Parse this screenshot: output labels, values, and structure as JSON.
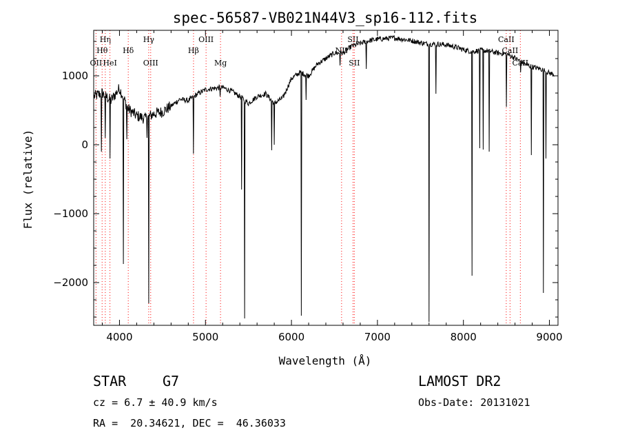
{
  "chart_data": {
    "type": "line",
    "title": "spec-56587-VB021N44V3_sp16-112.fits",
    "xlabel": "Wavelength (Å)",
    "ylabel": "Flux (relative)",
    "xlim": [
      3700,
      9100
    ],
    "ylim": [
      -2620,
      1660
    ],
    "x_ticks": [
      4000,
      5000,
      6000,
      7000,
      8000,
      9000
    ],
    "y_ticks": [
      1000,
      0,
      -1000,
      -2000
    ],
    "grid": false,
    "line_color": "#000000",
    "marker_color": "#ff0000",
    "continuum": [
      [
        3700,
        700
      ],
      [
        3800,
        750
      ],
      [
        3900,
        640
      ],
      [
        4000,
        820
      ],
      [
        4100,
        520
      ],
      [
        4200,
        420
      ],
      [
        4300,
        380
      ],
      [
        4400,
        450
      ],
      [
        4500,
        480
      ],
      [
        4600,
        560
      ],
      [
        4700,
        660
      ],
      [
        4800,
        640
      ],
      [
        4900,
        730
      ],
      [
        5000,
        800
      ],
      [
        5100,
        820
      ],
      [
        5200,
        830
      ],
      [
        5300,
        780
      ],
      [
        5400,
        700
      ],
      [
        5500,
        600
      ],
      [
        5600,
        700
      ],
      [
        5700,
        740
      ],
      [
        5800,
        600
      ],
      [
        5900,
        680
      ],
      [
        6000,
        960
      ],
      [
        6100,
        1050
      ],
      [
        6200,
        1000
      ],
      [
        6300,
        1170
      ],
      [
        6400,
        1250
      ],
      [
        6500,
        1330
      ],
      [
        6600,
        1330
      ],
      [
        6700,
        1430
      ],
      [
        6800,
        1470
      ],
      [
        6900,
        1510
      ],
      [
        7000,
        1530
      ],
      [
        7100,
        1540
      ],
      [
        7200,
        1550
      ],
      [
        7300,
        1530
      ],
      [
        7400,
        1510
      ],
      [
        7500,
        1480
      ],
      [
        7600,
        1460
      ],
      [
        7700,
        1460
      ],
      [
        7800,
        1450
      ],
      [
        7900,
        1420
      ],
      [
        8000,
        1380
      ],
      [
        8100,
        1350
      ],
      [
        8200,
        1370
      ],
      [
        8300,
        1360
      ],
      [
        8400,
        1330
      ],
      [
        8500,
        1320
      ],
      [
        8600,
        1260
      ],
      [
        8700,
        1180
      ],
      [
        8800,
        1130
      ],
      [
        8900,
        1100
      ],
      [
        9000,
        1040
      ],
      [
        9100,
        1000
      ]
    ],
    "absorption_features": [
      [
        3790,
        -100
      ],
      [
        3835,
        100
      ],
      [
        3890,
        -200
      ],
      [
        4045,
        -1730
      ],
      [
        4085,
        80
      ],
      [
        4340,
        -2300
      ],
      [
        4320,
        100
      ],
      [
        4862,
        -130
      ],
      [
        5170,
        700
      ],
      [
        5420,
        -650
      ],
      [
        5455,
        -2520
      ],
      [
        5770,
        -80
      ],
      [
        5800,
        0
      ],
      [
        6115,
        -2480
      ],
      [
        6170,
        650
      ],
      [
        6565,
        1150
      ],
      [
        6870,
        1100
      ],
      [
        7600,
        -2570
      ],
      [
        7680,
        740
      ],
      [
        8100,
        -1900
      ],
      [
        8190,
        -50
      ],
      [
        8230,
        -70
      ],
      [
        8300,
        -100
      ],
      [
        8500,
        550
      ],
      [
        8545,
        1300
      ],
      [
        8665,
        1050
      ],
      [
        8790,
        -150
      ],
      [
        8930,
        -2150
      ],
      [
        8960,
        -200
      ]
    ],
    "line_markers": [
      {
        "x": 3727,
        "label": "OII",
        "row": 3
      },
      {
        "x": 3798,
        "label": "Hθ",
        "row": 2
      },
      {
        "x": 3835,
        "label": "Hη",
        "row": 1
      },
      {
        "x": 3889,
        "label": "HeI",
        "row": 3
      },
      {
        "x": 4102,
        "label": "Hδ",
        "row": 2
      },
      {
        "x": 4340,
        "label": "Hγ",
        "row": 1
      },
      {
        "x": 4363,
        "label": "OIII",
        "row": 3
      },
      {
        "x": 4861,
        "label": "Hβ",
        "row": 2
      },
      {
        "x": 5007,
        "label": "OIII",
        "row": 1
      },
      {
        "x": 5175,
        "label": "Mg",
        "row": 3
      },
      {
        "x": 6583,
        "label": "NII",
        "row": 2
      },
      {
        "x": 6716,
        "label": "SII",
        "row": 1
      },
      {
        "x": 6731,
        "label": "SII",
        "row": 3
      },
      {
        "x": 8498,
        "label": "CaII",
        "row": 1
      },
      {
        "x": 8542,
        "label": "CaII",
        "row": 2
      },
      {
        "x": 8662,
        "label": "CaII",
        "row": 3
      }
    ]
  },
  "info": {
    "object_class": "STAR",
    "subclass": "G7",
    "survey": "LAMOST DR2",
    "redshift": "cz = 6.7 ± 40.9 km/s",
    "obs_date": "Obs-Date: 20131021",
    "coords": "RA =  20.34621, DEC =  46.36033"
  }
}
